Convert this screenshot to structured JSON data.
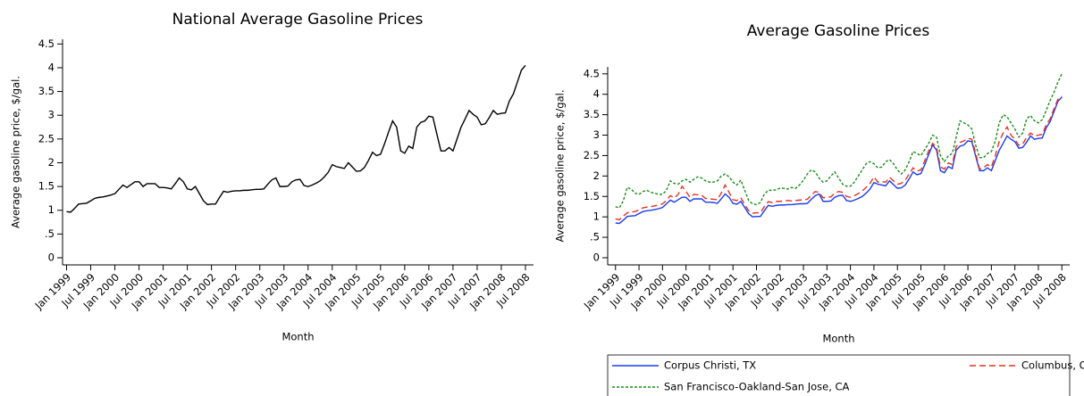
{
  "chart_data": [
    {
      "type": "line",
      "title": "National Average Gasoline Prices",
      "xlabel": "Month",
      "ylabel": "Average gasoline price, $/gal.",
      "color": "#000000",
      "x": [
        "1999-01",
        "1999-02",
        "1999-03",
        "1999-04",
        "1999-05",
        "1999-06",
        "1999-07",
        "1999-08",
        "1999-09",
        "1999-10",
        "1999-11",
        "1999-12",
        "2000-01",
        "2000-02",
        "2000-03",
        "2000-04",
        "2000-05",
        "2000-06",
        "2000-07",
        "2000-08",
        "2000-09",
        "2000-10",
        "2000-11",
        "2000-12",
        "2001-01",
        "2001-02",
        "2001-03",
        "2001-04",
        "2001-05",
        "2001-06",
        "2001-07",
        "2001-08",
        "2001-09",
        "2001-10",
        "2001-11",
        "2001-12",
        "2002-01",
        "2002-02",
        "2002-03",
        "2002-04",
        "2002-05",
        "2002-06",
        "2002-07",
        "2002-08",
        "2002-09",
        "2002-10",
        "2002-11",
        "2002-12",
        "2003-01",
        "2003-02",
        "2003-03",
        "2003-04",
        "2003-05",
        "2003-06",
        "2003-07",
        "2003-08",
        "2003-09",
        "2003-10",
        "2003-11",
        "2003-12",
        "2004-01",
        "2004-02",
        "2004-03",
        "2004-04",
        "2004-05",
        "2004-06",
        "2004-07",
        "2004-08",
        "2004-09",
        "2004-10",
        "2004-11",
        "2004-12",
        "2005-01",
        "2005-02",
        "2005-03",
        "2005-04",
        "2005-05",
        "2005-06",
        "2005-07",
        "2005-08",
        "2005-09",
        "2005-10",
        "2005-11",
        "2005-12",
        "2006-01",
        "2006-02",
        "2006-03",
        "2006-04",
        "2006-05",
        "2006-06",
        "2006-07",
        "2006-08",
        "2006-09",
        "2006-10",
        "2006-11",
        "2006-12",
        "2007-01",
        "2007-02",
        "2007-03",
        "2007-04",
        "2007-05",
        "2007-06",
        "2007-07",
        "2007-08",
        "2007-09",
        "2007-10",
        "2007-11",
        "2007-12",
        "2008-01",
        "2008-02",
        "2008-03",
        "2008-04",
        "2008-05",
        "2008-06",
        "2008-07"
      ],
      "values": [
        0.97,
        0.96,
        1.04,
        1.13,
        1.14,
        1.15,
        1.2,
        1.25,
        1.27,
        1.28,
        1.3,
        1.32,
        1.35,
        1.44,
        1.53,
        1.48,
        1.54,
        1.6,
        1.6,
        1.5,
        1.56,
        1.56,
        1.56,
        1.48,
        1.48,
        1.47,
        1.45,
        1.56,
        1.68,
        1.6,
        1.45,
        1.43,
        1.5,
        1.35,
        1.2,
        1.12,
        1.13,
        1.13,
        1.27,
        1.4,
        1.38,
        1.4,
        1.41,
        1.41,
        1.42,
        1.42,
        1.43,
        1.44,
        1.44,
        1.45,
        1.55,
        1.64,
        1.68,
        1.5,
        1.5,
        1.51,
        1.6,
        1.64,
        1.65,
        1.52,
        1.5,
        1.53,
        1.57,
        1.62,
        1.7,
        1.8,
        1.96,
        1.92,
        1.9,
        1.88,
        2.0,
        1.91,
        1.82,
        1.83,
        1.9,
        2.05,
        2.22,
        2.15,
        2.18,
        2.4,
        2.65,
        2.88,
        2.75,
        2.25,
        2.2,
        2.35,
        2.3,
        2.75,
        2.85,
        2.88,
        2.98,
        2.96,
        2.6,
        2.25,
        2.25,
        2.32,
        2.25,
        2.5,
        2.75,
        2.92,
        3.1,
        3.02,
        2.96,
        2.8,
        2.82,
        2.95,
        3.1,
        3.02,
        3.04,
        3.05,
        3.3,
        3.45,
        3.7,
        3.95,
        4.05
      ],
      "xlim": [
        "1998-12",
        "2008-09"
      ],
      "xticks": [
        {
          "value": "1999-01",
          "label": "Jan 1999"
        },
        {
          "value": "1999-07",
          "label": "Jul 1999"
        },
        {
          "value": "2000-01",
          "label": "Jan 2000"
        },
        {
          "value": "2000-07",
          "label": "Jul 2000"
        },
        {
          "value": "2001-01",
          "label": "Jan 2001"
        },
        {
          "value": "2001-07",
          "label": "Jul 2001"
        },
        {
          "value": "2002-01",
          "label": "Jan 2002"
        },
        {
          "value": "2002-07",
          "label": "Jul 2002"
        },
        {
          "value": "2003-01",
          "label": "Jan 2003"
        },
        {
          "value": "2003-07",
          "label": "Jul 2003"
        },
        {
          "value": "2004-01",
          "label": "Jan 2004"
        },
        {
          "value": "2004-07",
          "label": "Jul 2004"
        },
        {
          "value": "2005-01",
          "label": "Jan 2005"
        },
        {
          "value": "2005-07",
          "label": "Jul 2005"
        },
        {
          "value": "2006-01",
          "label": "Jan 2006"
        },
        {
          "value": "2006-07",
          "label": "Jul 2006"
        },
        {
          "value": "2007-01",
          "label": "Jan 2007"
        },
        {
          "value": "2007-07",
          "label": "Jul 2007"
        },
        {
          "value": "2008-01",
          "label": "Jan 2008"
        },
        {
          "value": "2008-07",
          "label": "Jul 2008"
        }
      ],
      "ylim": [
        -0.15,
        4.6
      ],
      "yticks": [
        0,
        {
          "value": 0.5,
          "label": ".5"
        },
        1,
        1.5,
        2,
        2.5,
        3,
        3.5,
        4,
        4.5
      ]
    },
    {
      "type": "line",
      "title": "Average Gasoline Prices",
      "xlabel": "Month",
      "ylabel": "Average gasoline price, $/gal.",
      "legend": "bottom",
      "x": [
        "1999-01",
        "1999-02",
        "1999-03",
        "1999-04",
        "1999-05",
        "1999-06",
        "1999-07",
        "1999-08",
        "1999-09",
        "1999-10",
        "1999-11",
        "1999-12",
        "2000-01",
        "2000-02",
        "2000-03",
        "2000-04",
        "2000-05",
        "2000-06",
        "2000-07",
        "2000-08",
        "2000-09",
        "2000-10",
        "2000-11",
        "2000-12",
        "2001-01",
        "2001-02",
        "2001-03",
        "2001-04",
        "2001-05",
        "2001-06",
        "2001-07",
        "2001-08",
        "2001-09",
        "2001-10",
        "2001-11",
        "2001-12",
        "2002-01",
        "2002-02",
        "2002-03",
        "2002-04",
        "2002-05",
        "2002-06",
        "2002-07",
        "2002-08",
        "2002-09",
        "2002-10",
        "2002-11",
        "2002-12",
        "2003-01",
        "2003-02",
        "2003-03",
        "2003-04",
        "2003-05",
        "2003-06",
        "2003-07",
        "2003-08",
        "2003-09",
        "2003-10",
        "2003-11",
        "2003-12",
        "2004-01",
        "2004-02",
        "2004-03",
        "2004-04",
        "2004-05",
        "2004-06",
        "2004-07",
        "2004-08",
        "2004-09",
        "2004-10",
        "2004-11",
        "2004-12",
        "2005-01",
        "2005-02",
        "2005-03",
        "2005-04",
        "2005-05",
        "2005-06",
        "2005-07",
        "2005-08",
        "2005-09",
        "2005-10",
        "2005-11",
        "2005-12",
        "2006-01",
        "2006-02",
        "2006-03",
        "2006-04",
        "2006-05",
        "2006-06",
        "2006-07",
        "2006-08",
        "2006-09",
        "2006-10",
        "2006-11",
        "2006-12",
        "2007-01",
        "2007-02",
        "2007-03",
        "2007-04",
        "2007-05",
        "2007-06",
        "2007-07",
        "2007-08",
        "2007-09",
        "2007-10",
        "2007-11",
        "2007-12",
        "2008-01",
        "2008-02",
        "2008-03",
        "2008-04",
        "2008-05",
        "2008-06",
        "2008-07"
      ],
      "series": [
        {
          "name": "Corpus Christi, TX",
          "color": "#1a3cf0",
          "line_style": "solid",
          "values": [
            0.85,
            0.84,
            0.92,
            1.01,
            1.02,
            1.03,
            1.08,
            1.13,
            1.15,
            1.16,
            1.18,
            1.2,
            1.23,
            1.32,
            1.41,
            1.36,
            1.42,
            1.48,
            1.48,
            1.38,
            1.44,
            1.44,
            1.44,
            1.36,
            1.36,
            1.35,
            1.33,
            1.44,
            1.56,
            1.48,
            1.33,
            1.31,
            1.38,
            1.23,
            1.08,
            1.0,
            1.01,
            1.01,
            1.15,
            1.28,
            1.26,
            1.28,
            1.29,
            1.29,
            1.3,
            1.3,
            1.31,
            1.32,
            1.32,
            1.33,
            1.43,
            1.52,
            1.56,
            1.38,
            1.38,
            1.39,
            1.48,
            1.52,
            1.53,
            1.4,
            1.38,
            1.41,
            1.45,
            1.5,
            1.58,
            1.68,
            1.84,
            1.8,
            1.78,
            1.76,
            1.88,
            1.79,
            1.7,
            1.71,
            1.78,
            1.93,
            2.1,
            2.03,
            2.06,
            2.28,
            2.53,
            2.76,
            2.63,
            2.13,
            2.08,
            2.23,
            2.18,
            2.63,
            2.73,
            2.76,
            2.86,
            2.84,
            2.48,
            2.13,
            2.13,
            2.2,
            2.13,
            2.38,
            2.63,
            2.8,
            2.98,
            2.9,
            2.84,
            2.68,
            2.7,
            2.83,
            2.98,
            2.9,
            2.92,
            2.93,
            3.18,
            3.33,
            3.58,
            3.83,
            3.93
          ]
        },
        {
          "name": "Columbus, OH",
          "color": "#e8321e",
          "line_style": "dashed",
          "values": [
            0.95,
            0.93,
            1.02,
            1.1,
            1.12,
            1.13,
            1.17,
            1.22,
            1.24,
            1.25,
            1.27,
            1.29,
            1.32,
            1.4,
            1.52,
            1.46,
            1.55,
            1.75,
            1.62,
            1.48,
            1.55,
            1.54,
            1.53,
            1.45,
            1.44,
            1.43,
            1.42,
            1.58,
            1.78,
            1.6,
            1.42,
            1.4,
            1.47,
            1.3,
            1.15,
            1.09,
            1.1,
            1.1,
            1.25,
            1.37,
            1.35,
            1.38,
            1.38,
            1.39,
            1.4,
            1.39,
            1.4,
            1.41,
            1.42,
            1.43,
            1.53,
            1.62,
            1.6,
            1.47,
            1.47,
            1.49,
            1.58,
            1.62,
            1.6,
            1.5,
            1.48,
            1.52,
            1.57,
            1.63,
            1.72,
            1.82,
            1.98,
            1.85,
            1.86,
            1.85,
            1.97,
            1.88,
            1.8,
            1.82,
            1.9,
            2.05,
            2.2,
            2.12,
            2.15,
            2.38,
            2.62,
            2.8,
            2.7,
            2.22,
            2.17,
            2.32,
            2.28,
            2.72,
            2.82,
            2.86,
            2.92,
            2.9,
            2.55,
            2.17,
            2.2,
            2.28,
            2.22,
            2.5,
            2.85,
            3.05,
            3.2,
            3.0,
            2.9,
            2.75,
            2.78,
            2.95,
            3.05,
            2.98,
            3.0,
            3.02,
            3.25,
            3.4,
            3.65,
            3.88,
            3.95
          ]
        },
        {
          "name": "San Francisco-Oakland-San Jose, CA",
          "color": "#1a8c1a",
          "line_style": "dotted",
          "values": [
            1.25,
            1.22,
            1.4,
            1.72,
            1.68,
            1.58,
            1.55,
            1.62,
            1.65,
            1.6,
            1.58,
            1.55,
            1.55,
            1.65,
            1.88,
            1.82,
            1.8,
            1.88,
            1.92,
            1.85,
            1.92,
            1.98,
            1.95,
            1.88,
            1.85,
            1.85,
            1.88,
            2.0,
            2.05,
            1.98,
            1.85,
            1.78,
            1.9,
            1.65,
            1.4,
            1.32,
            1.3,
            1.35,
            1.55,
            1.65,
            1.65,
            1.66,
            1.7,
            1.7,
            1.68,
            1.72,
            1.7,
            1.78,
            1.9,
            2.05,
            2.15,
            2.1,
            1.95,
            1.85,
            1.88,
            2.0,
            2.1,
            1.95,
            1.8,
            1.75,
            1.75,
            1.85,
            2.0,
            2.15,
            2.3,
            2.35,
            2.3,
            2.2,
            2.22,
            2.35,
            2.4,
            2.3,
            2.15,
            2.05,
            2.15,
            2.35,
            2.6,
            2.55,
            2.5,
            2.65,
            2.8,
            3.0,
            2.95,
            2.5,
            2.35,
            2.5,
            2.55,
            2.95,
            3.35,
            3.3,
            3.25,
            3.15,
            2.75,
            2.45,
            2.45,
            2.55,
            2.6,
            2.85,
            3.3,
            3.5,
            3.45,
            3.3,
            3.15,
            2.95,
            3.05,
            3.4,
            3.48,
            3.35,
            3.3,
            3.38,
            3.6,
            3.85,
            4.05,
            4.3,
            4.5
          ]
        }
      ],
      "xlim": [
        "1998-11",
        "2008-09"
      ],
      "xticks": [
        {
          "value": "1999-01",
          "label": "Jan 1999"
        },
        {
          "value": "1999-07",
          "label": "Jul 1999"
        },
        {
          "value": "2000-01",
          "label": "Jan 2000"
        },
        {
          "value": "2000-07",
          "label": "Jul 2000"
        },
        {
          "value": "2001-01",
          "label": "Jan 2001"
        },
        {
          "value": "2001-07",
          "label": "Jul 2001"
        },
        {
          "value": "2002-01",
          "label": "Jan 2002"
        },
        {
          "value": "2002-07",
          "label": "Jul 2002"
        },
        {
          "value": "2003-01",
          "label": "Jan 2003"
        },
        {
          "value": "2003-07",
          "label": "Jul 2003"
        },
        {
          "value": "2004-01",
          "label": "Jan 2004"
        },
        {
          "value": "2004-07",
          "label": "Jul 2004"
        },
        {
          "value": "2005-01",
          "label": "Jan 2005"
        },
        {
          "value": "2005-07",
          "label": "Jul 2005"
        },
        {
          "value": "2006-01",
          "label": "Jan 2006"
        },
        {
          "value": "2006-07",
          "label": "Jul 2006"
        },
        {
          "value": "2007-01",
          "label": "Jan 2007"
        },
        {
          "value": "2007-07",
          "label": "Jul 2007"
        },
        {
          "value": "2008-01",
          "label": "Jan 2008"
        },
        {
          "value": "2008-07",
          "label": "Jul 2008"
        }
      ],
      "ylim": [
        -0.175,
        4.67
      ],
      "yticks": [
        0,
        {
          "value": 0.5,
          "label": ".5"
        },
        1,
        1.5,
        2,
        2.5,
        3,
        3.5,
        4,
        4.5
      ]
    }
  ]
}
